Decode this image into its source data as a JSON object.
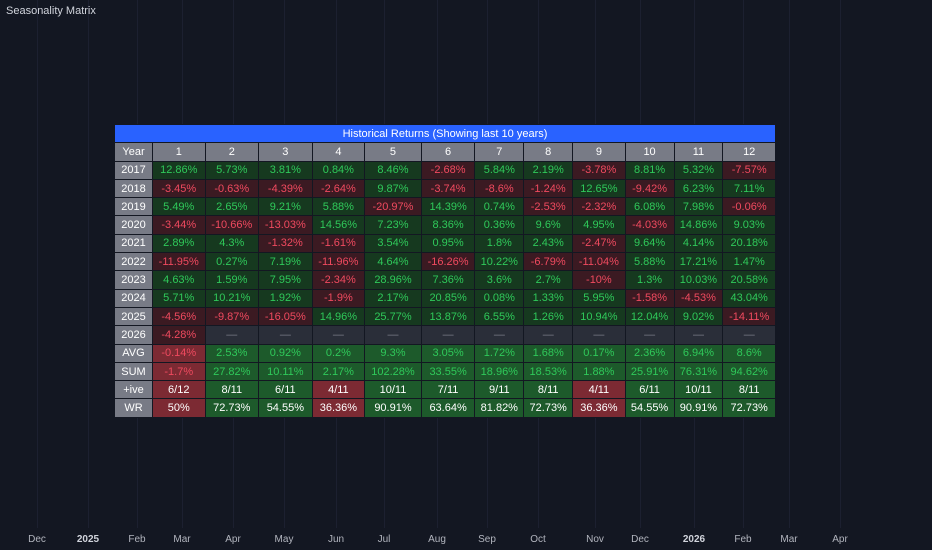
{
  "indicator_title": "Seasonality Matrix",
  "table": {
    "title": "Historical Returns (Showing last 10 years)",
    "year_header": "Year",
    "months": [
      "1",
      "2",
      "3",
      "4",
      "5",
      "6",
      "7",
      "8",
      "9",
      "10",
      "11",
      "12"
    ],
    "rows": [
      {
        "label": "2017",
        "cells": [
          "12.86%",
          "5.73%",
          "3.81%",
          "0.84%",
          "8.46%",
          "-2.68%",
          "5.84%",
          "2.19%",
          "-3.78%",
          "8.81%",
          "5.32%",
          "-7.57%"
        ]
      },
      {
        "label": "2018",
        "cells": [
          "-3.45%",
          "-0.63%",
          "-4.39%",
          "-2.64%",
          "9.87%",
          "-3.74%",
          "-8.6%",
          "-1.24%",
          "12.65%",
          "-9.42%",
          "6.23%",
          "7.11%"
        ]
      },
      {
        "label": "2019",
        "cells": [
          "5.49%",
          "2.65%",
          "9.21%",
          "5.88%",
          "-20.97%",
          "14.39%",
          "0.74%",
          "-2.53%",
          "-2.32%",
          "6.08%",
          "7.98%",
          "-0.06%"
        ]
      },
      {
        "label": "2020",
        "cells": [
          "-3.44%",
          "-10.66%",
          "-13.03%",
          "14.56%",
          "7.23%",
          "8.36%",
          "0.36%",
          "9.6%",
          "4.95%",
          "-4.03%",
          "14.86%",
          "9.03%"
        ]
      },
      {
        "label": "2021",
        "cells": [
          "2.89%",
          "4.3%",
          "-1.32%",
          "-1.61%",
          "3.54%",
          "0.95%",
          "1.8%",
          "2.43%",
          "-2.47%",
          "9.64%",
          "4.14%",
          "20.18%"
        ]
      },
      {
        "label": "2022",
        "cells": [
          "-11.95%",
          "0.27%",
          "7.19%",
          "-11.96%",
          "4.64%",
          "-16.26%",
          "10.22%",
          "-6.79%",
          "-11.04%",
          "5.88%",
          "17.21%",
          "1.47%"
        ]
      },
      {
        "label": "2023",
        "cells": [
          "4.63%",
          "1.59%",
          "7.95%",
          "-2.34%",
          "28.96%",
          "7.36%",
          "3.6%",
          "2.7%",
          "-10%",
          "1.3%",
          "10.03%",
          "20.58%"
        ]
      },
      {
        "label": "2024",
        "cells": [
          "5.71%",
          "10.21%",
          "1.92%",
          "-1.9%",
          "2.17%",
          "20.85%",
          "0.08%",
          "1.33%",
          "5.95%",
          "-1.58%",
          "-4.53%",
          "43.04%"
        ]
      },
      {
        "label": "2025",
        "cells": [
          "-4.56%",
          "-9.87%",
          "-16.05%",
          "14.96%",
          "25.77%",
          "13.87%",
          "6.55%",
          "1.26%",
          "10.94%",
          "12.04%",
          "9.02%",
          "-14.11%"
        ]
      },
      {
        "label": "2026",
        "cells": [
          "-4.28%",
          "—",
          "—",
          "—",
          "—",
          "—",
          "—",
          "—",
          "—",
          "—",
          "—",
          "—"
        ]
      }
    ],
    "summary": [
      {
        "label": "AVG",
        "style": "s",
        "cells": [
          "-0.14%",
          "2.53%",
          "0.92%",
          "0.2%",
          "9.3%",
          "3.05%",
          "1.72%",
          "1.68%",
          "0.17%",
          "2.36%",
          "6.94%",
          "8.6%"
        ]
      },
      {
        "label": "SUM",
        "style": "s",
        "cells": [
          "-1.7%",
          "27.82%",
          "10.11%",
          "2.17%",
          "102.28%",
          "33.55%",
          "18.96%",
          "18.53%",
          "1.88%",
          "25.91%",
          "76.31%",
          "94.62%"
        ]
      },
      {
        "label": "+ive",
        "style": "w",
        "cells": [
          "6/12",
          "8/11",
          "6/11",
          "4/11",
          "10/11",
          "7/11",
          "9/11",
          "8/11",
          "4/11",
          "6/11",
          "10/11",
          "8/11"
        ],
        "pos": [
          false,
          true,
          true,
          false,
          true,
          true,
          true,
          true,
          false,
          true,
          true,
          true
        ]
      },
      {
        "label": "WR",
        "style": "w",
        "cells": [
          "50%",
          "72.73%",
          "54.55%",
          "36.36%",
          "90.91%",
          "63.64%",
          "81.82%",
          "72.73%",
          "36.36%",
          "54.55%",
          "90.91%",
          "72.73%"
        ],
        "pos": [
          false,
          true,
          true,
          false,
          true,
          true,
          true,
          true,
          false,
          true,
          true,
          true
        ]
      }
    ]
  },
  "time_axis": [
    {
      "label": "Dec",
      "bold": false
    },
    {
      "label": "2025",
      "bold": true
    },
    {
      "label": "Feb",
      "bold": false
    },
    {
      "label": "Mar",
      "bold": false
    },
    {
      "label": "Apr",
      "bold": false
    },
    {
      "label": "May",
      "bold": false
    },
    {
      "label": "Jun",
      "bold": false
    },
    {
      "label": "Jul",
      "bold": false
    },
    {
      "label": "Aug",
      "bold": false
    },
    {
      "label": "Sep",
      "bold": false
    },
    {
      "label": "Oct",
      "bold": false
    },
    {
      "label": "Nov",
      "bold": false
    },
    {
      "label": "Dec",
      "bold": false
    },
    {
      "label": "2026",
      "bold": true
    },
    {
      "label": "Feb",
      "bold": false
    },
    {
      "label": "Mar",
      "bold": false
    },
    {
      "label": "Apr",
      "bold": false
    }
  ]
}
